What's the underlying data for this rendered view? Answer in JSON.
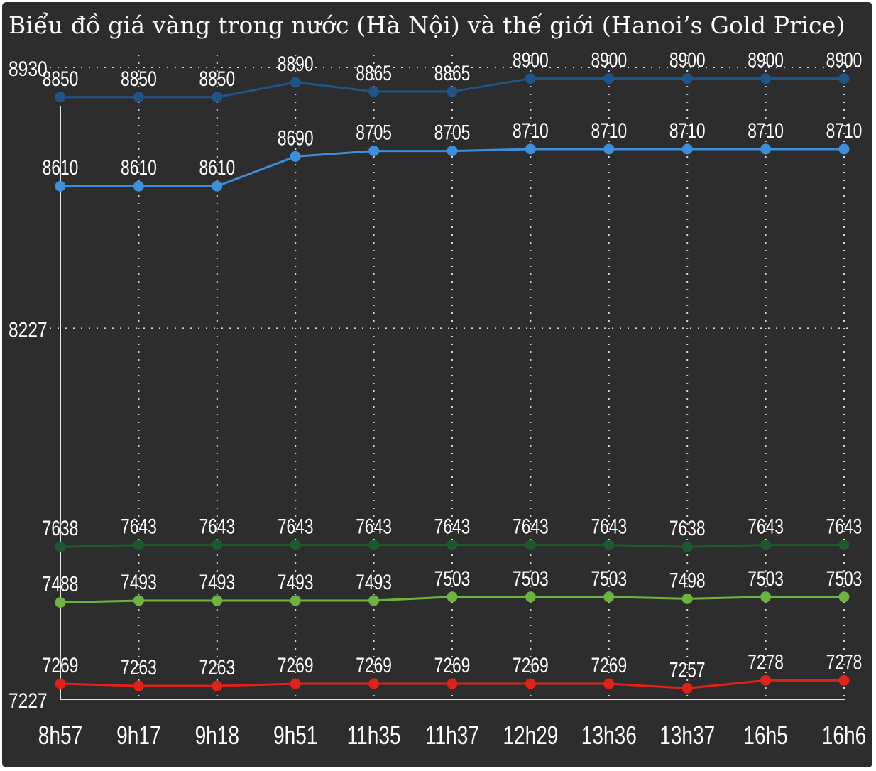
{
  "chart_data": {
    "type": "line",
    "title": "Biểu đồ giá vàng trong nước (Hà Nội) và thế giới (Hanoi’s Gold Price)",
    "categories": [
      "8h57",
      "9h17",
      "9h18",
      "9h51",
      "11h35",
      "11h37",
      "12h29",
      "13h36",
      "13h37",
      "16h5",
      "16h6"
    ],
    "ylim": [
      7227,
      8930
    ],
    "y_ticks": [
      7227,
      8227,
      8930
    ],
    "grid": true,
    "legend": "none",
    "series": [
      {
        "color": "#1f5589",
        "values": [
          8850,
          8850,
          8850,
          8890,
          8865,
          8865,
          8900,
          8900,
          8900,
          8900,
          8900
        ]
      },
      {
        "color": "#3c8fd8",
        "values": [
          8610,
          8610,
          8610,
          8690,
          8705,
          8705,
          8710,
          8710,
          8710,
          8710,
          8710
        ]
      },
      {
        "color": "#1e5a2f",
        "values": [
          7638,
          7643,
          7643,
          7643,
          7643,
          7643,
          7643,
          7643,
          7638,
          7643,
          7643
        ]
      },
      {
        "color": "#6cb33f",
        "values": [
          7488,
          7493,
          7493,
          7493,
          7493,
          7503,
          7503,
          7503,
          7498,
          7503,
          7503
        ]
      },
      {
        "color": "#e0221b",
        "values": [
          7269,
          7263,
          7263,
          7269,
          7269,
          7269,
          7269,
          7269,
          7257,
          7278,
          7278
        ]
      }
    ]
  }
}
